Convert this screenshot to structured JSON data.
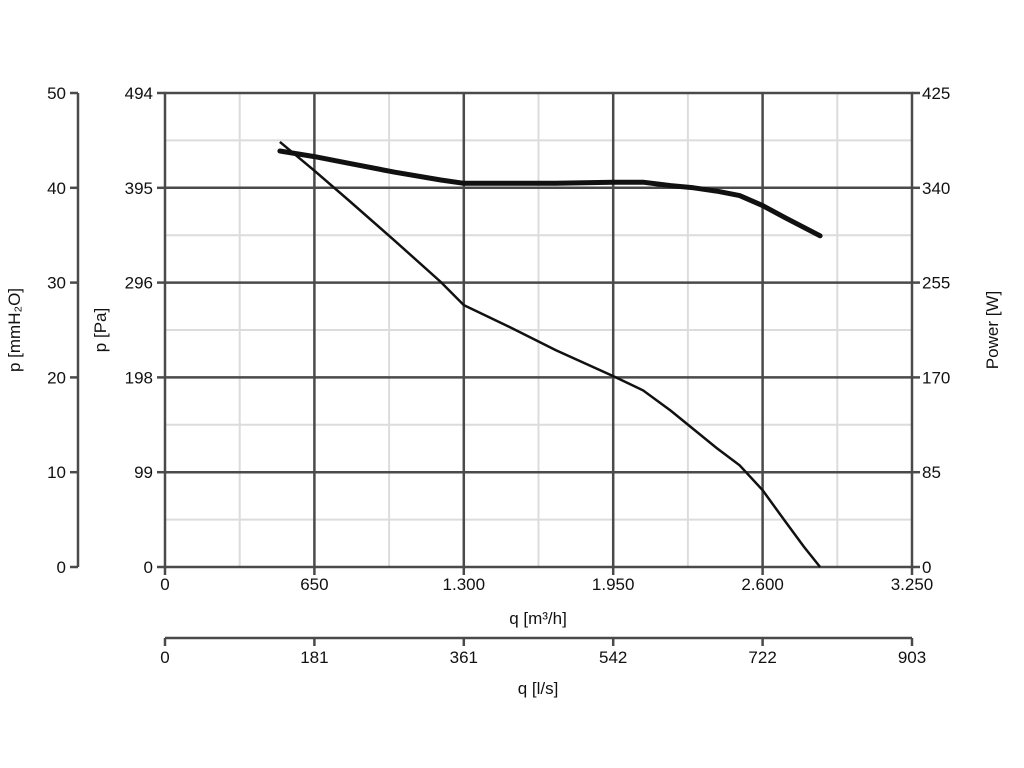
{
  "chart_data": {
    "type": "line",
    "x_unit_label": "q [m³/h]",
    "x2_unit_label": "q [l/s]",
    "y_left_outer_label": "p [mmH₂O]",
    "y_left_inner_label": "p [Pa]",
    "y_right_label": "Power [W]",
    "x_ticks": [
      "0",
      "650",
      "1.300",
      "1.950",
      "2.600",
      "3.250"
    ],
    "x2_ticks": [
      "0",
      "181",
      "361",
      "542",
      "722",
      "903"
    ],
    "y_mmh2o_ticks": [
      "0",
      "10",
      "20",
      "30",
      "40",
      "50"
    ],
    "y_pa_ticks": [
      "0",
      "99",
      "198",
      "296",
      "395",
      "494"
    ],
    "y_power_ticks": [
      "0",
      "85",
      "170",
      "255",
      "340",
      "425"
    ],
    "xlim": [
      0,
      3250
    ],
    "y_pa_lim": [
      0,
      494
    ],
    "y_power_lim": [
      0,
      425
    ],
    "grid": true,
    "series": [
      {
        "axis": "pa",
        "x": [
          500,
          650,
          800,
          1000,
          1200,
          1300,
          1500,
          1700,
          1950,
          2080,
          2200,
          2400,
          2500,
          2600,
          2700,
          2780,
          2850
        ],
        "y": [
          443,
          413,
          382,
          340,
          297,
          273,
          250,
          226,
          199,
          184,
          163,
          124,
          106,
          80,
          47,
          21,
          0
        ]
      },
      {
        "axis": "power",
        "x": [
          500,
          650,
          800,
          1000,
          1200,
          1300,
          1500,
          1700,
          1950,
          2080,
          2200,
          2300,
          2400,
          2500,
          2600,
          2700,
          2850
        ],
        "y": [
          373,
          368,
          362,
          354,
          347,
          344,
          344,
          344,
          345,
          345,
          342,
          340,
          337,
          333,
          324,
          313,
          297
        ]
      }
    ]
  }
}
